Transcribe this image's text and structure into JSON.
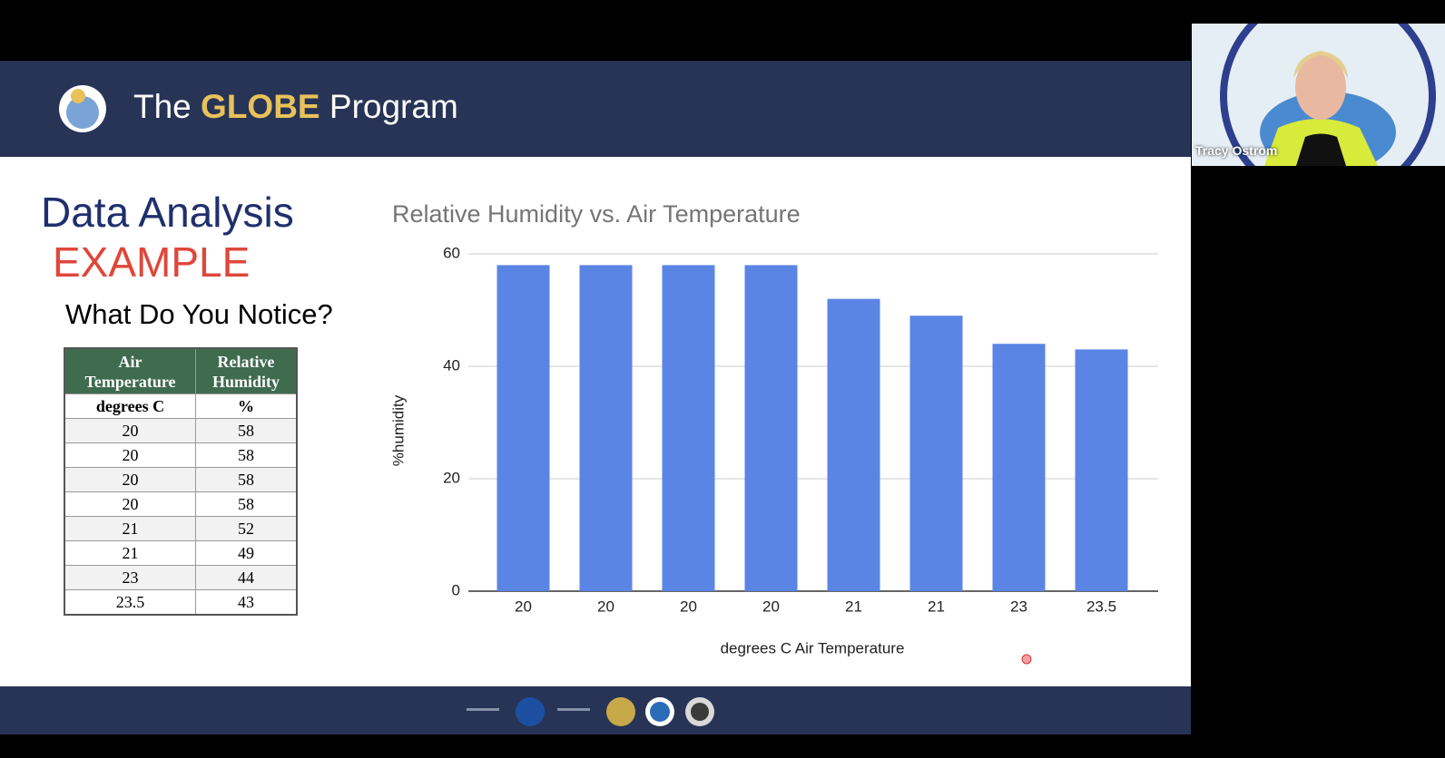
{
  "header": {
    "title_parts": [
      "The",
      "GLOBE",
      "Program"
    ]
  },
  "slide": {
    "heading": "Data Analysis",
    "subheading": "EXAMPLE",
    "prompt": "What Do You Notice?"
  },
  "table": {
    "header": [
      "Air Temperature",
      "Relative Humidity"
    ],
    "units": [
      "degrees C",
      "%"
    ],
    "rows": [
      [
        20,
        58
      ],
      [
        20,
        58
      ],
      [
        20,
        58
      ],
      [
        20,
        58
      ],
      [
        21,
        52
      ],
      [
        21,
        49
      ],
      [
        23,
        44
      ],
      [
        23.5,
        43
      ]
    ]
  },
  "chart_data": {
    "type": "bar",
    "title": "Relative Humidity vs. Air Temperature",
    "x_label": "degrees C Air Temperature",
    "y_label": "%humidity",
    "categories": [
      "20",
      "20",
      "20",
      "20",
      "21",
      "21",
      "23",
      "23.5"
    ],
    "values": [
      58,
      58,
      58,
      58,
      52,
      49,
      44,
      43
    ],
    "color": "#5b85e4",
    "ylim": [
      0,
      60
    ],
    "yticks": [
      0,
      20,
      40,
      60
    ],
    "grid": true
  },
  "participant": {
    "name": "Tracy Ostrom"
  }
}
